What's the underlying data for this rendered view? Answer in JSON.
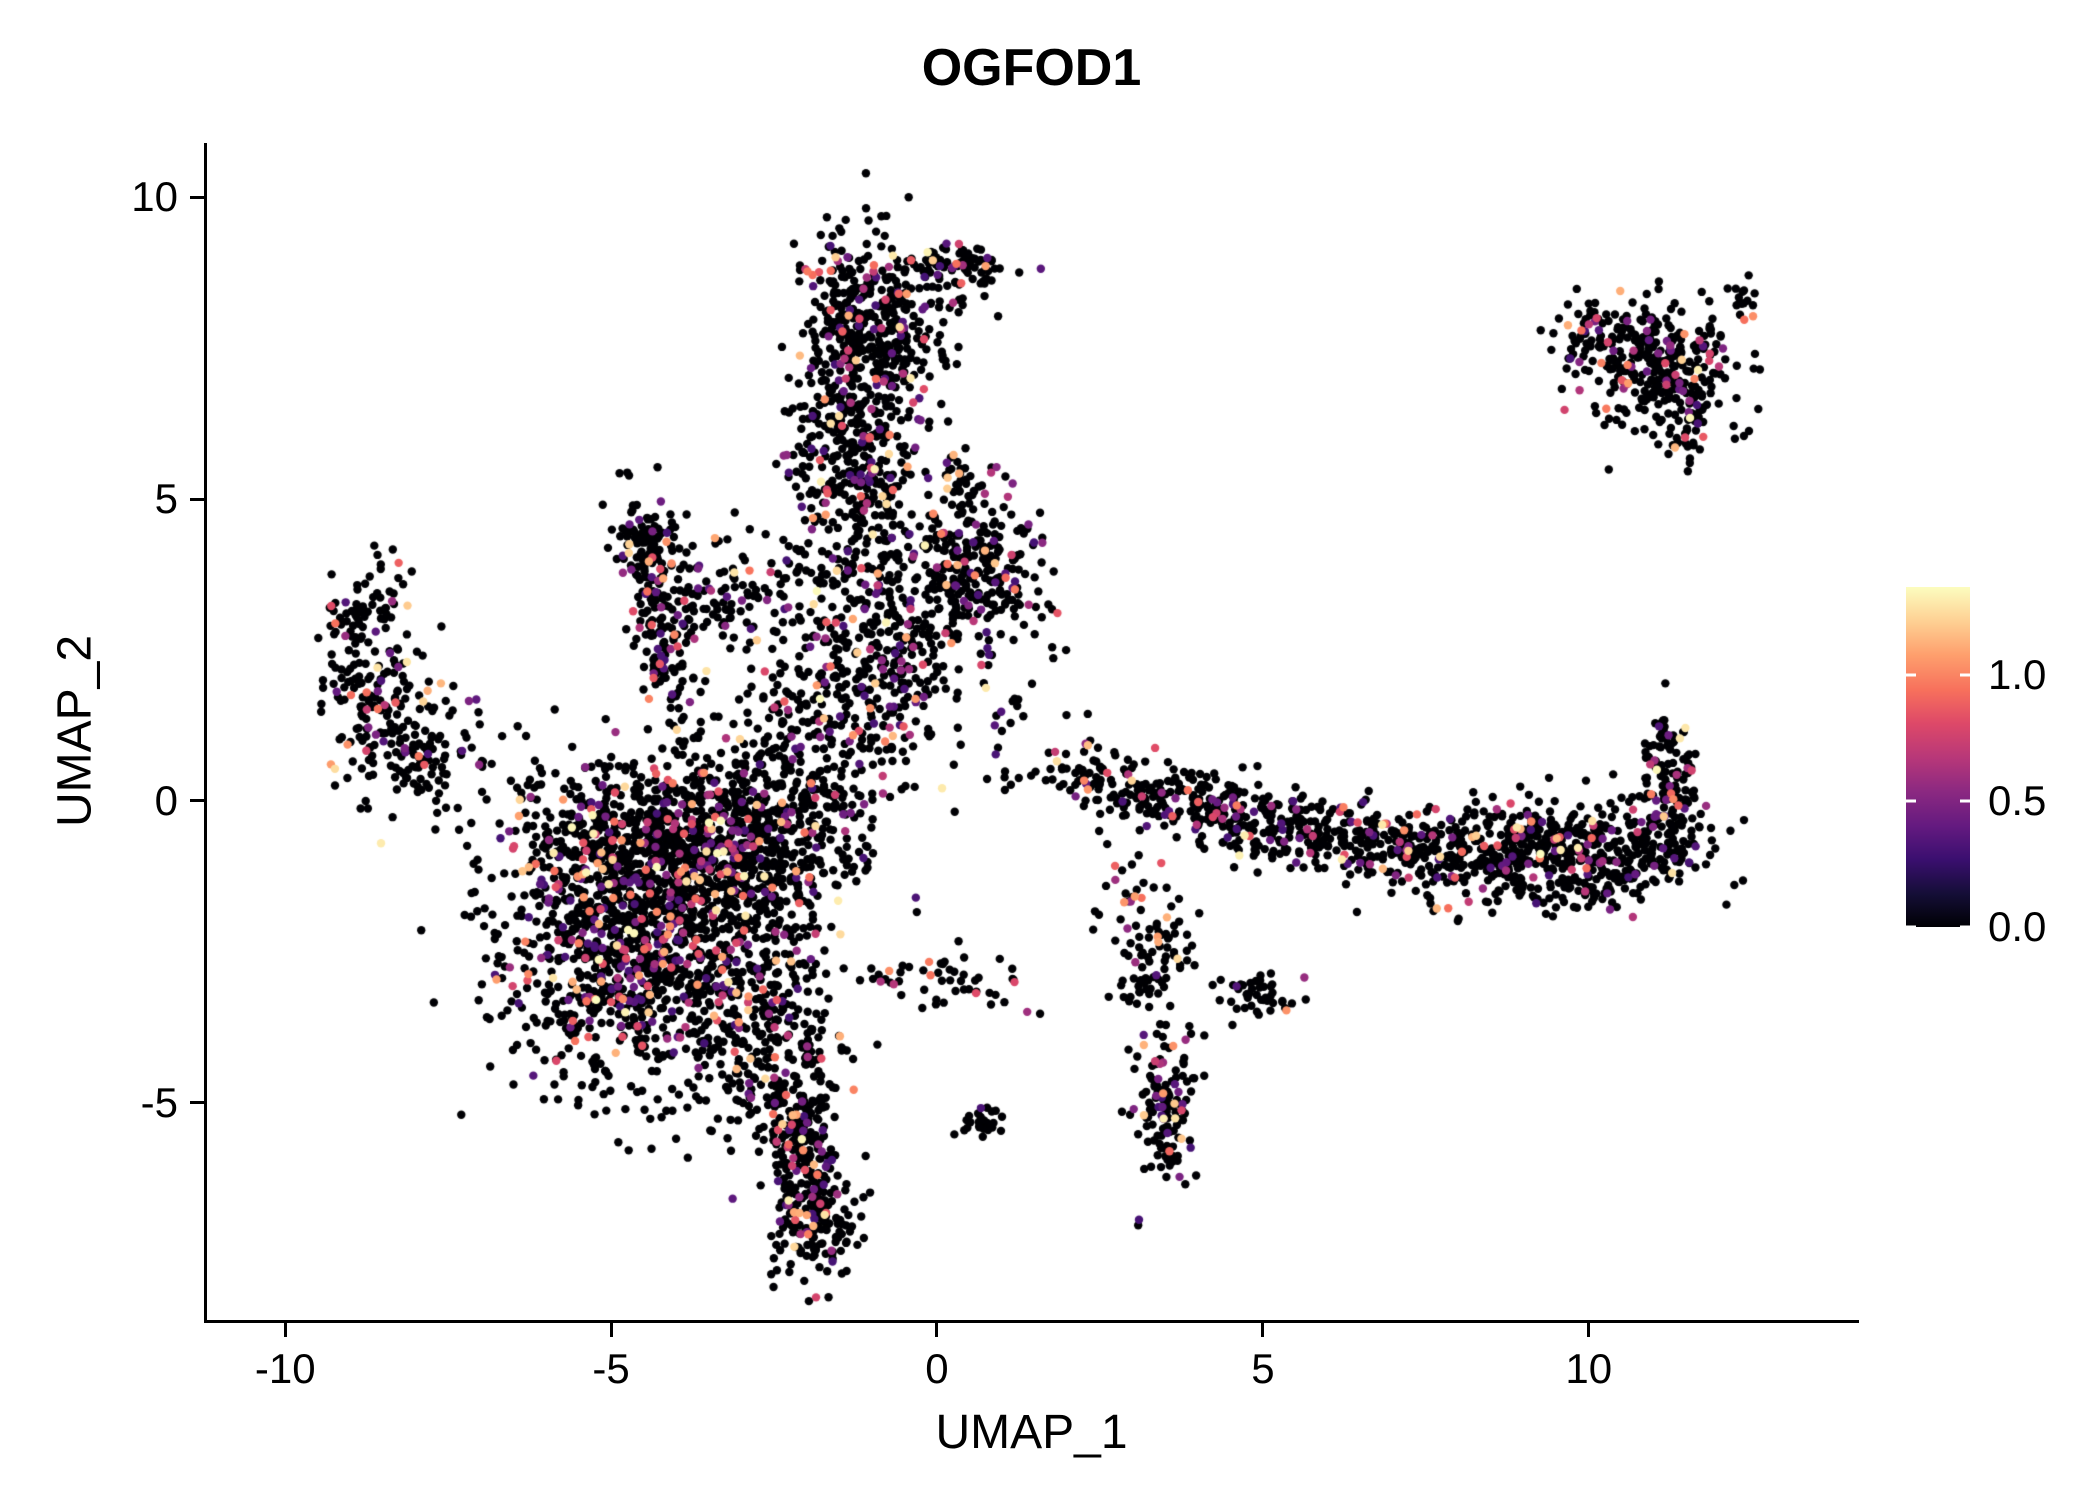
{
  "title": "OGFOD1",
  "chart_data": {
    "type": "scatter",
    "title": "OGFOD1",
    "xlabel": "UMAP_1",
    "ylabel": "UMAP_2",
    "xlim": [
      -11.2,
      14.1
    ],
    "ylim": [
      -8.6,
      10.9
    ],
    "x_ticks": [
      -10,
      -5,
      0,
      5,
      10
    ],
    "x_tick_labels": [
      "-10",
      "-5",
      "0",
      "5",
      "10"
    ],
    "y_ticks": [
      -5,
      0,
      5,
      10
    ],
    "y_tick_labels": [
      "-5",
      "0",
      "5",
      "10"
    ],
    "grid": false,
    "background": "#ffffff",
    "point_radius": 4.2,
    "seed": 42,
    "zero_fraction": 0.84,
    "legend": {
      "position": "right",
      "title": "",
      "ticks": [
        0.0,
        0.5,
        1.0
      ],
      "tick_labels": [
        "0.0",
        "0.5",
        "1.0"
      ],
      "max_value": 1.35,
      "colormap": "magma",
      "stops": [
        {
          "v": 0.0,
          "color": "#000004"
        },
        {
          "v": 0.13,
          "color": "#140e36"
        },
        {
          "v": 0.27,
          "color": "#3b0f70"
        },
        {
          "v": 0.4,
          "color": "#641a80"
        },
        {
          "v": 0.54,
          "color": "#8c2981"
        },
        {
          "v": 0.67,
          "color": "#b73779"
        },
        {
          "v": 0.81,
          "color": "#de4968"
        },
        {
          "v": 0.94,
          "color": "#f7705c"
        },
        {
          "v": 1.08,
          "color": "#fe9f6d"
        },
        {
          "v": 1.21,
          "color": "#fecf92"
        },
        {
          "v": 1.35,
          "color": "#fcfdbf"
        }
      ]
    },
    "clusters": [
      {
        "cx": -4.3,
        "cy": -2.2,
        "sx": 1.15,
        "sy": 1.25,
        "n": 1500
      },
      {
        "cx": -3.3,
        "cy": -0.8,
        "sx": 0.95,
        "sy": 0.75,
        "n": 500
      },
      {
        "cx": -5.3,
        "cy": -0.5,
        "sx": 0.75,
        "sy": 0.5,
        "n": 200
      },
      {
        "cx": -2.6,
        "cy": -4.3,
        "sx": 0.5,
        "sy": 0.7,
        "n": 190
      },
      {
        "cx": -2.1,
        "cy": -5.6,
        "sx": 0.28,
        "sy": 0.6,
        "n": 150
      },
      {
        "cx": -1.85,
        "cy": -6.9,
        "sx": 0.3,
        "sy": 0.55,
        "n": 170
      },
      {
        "cx": -2.3,
        "cy": -0.1,
        "sx": 0.65,
        "sy": 0.9,
        "n": 170
      },
      {
        "cx": -8.6,
        "cy": 1.9,
        "sx": 0.45,
        "sy": 0.85,
        "n": 170
      },
      {
        "cx": -7.9,
        "cy": 0.8,
        "sx": 0.45,
        "sy": 0.5,
        "n": 90
      },
      {
        "cx": -8.9,
        "cy": 3.1,
        "sx": 0.3,
        "sy": 0.25,
        "n": 40
      },
      {
        "cx": -4.25,
        "cy": 2.9,
        "sx": 0.18,
        "sy": 1.05,
        "n": 160,
        "rot": 8
      },
      {
        "cx": -4.4,
        "cy": 4.35,
        "sx": 0.3,
        "sy": 0.28,
        "n": 70
      },
      {
        "cx": -3.4,
        "cy": 3.4,
        "sx": 0.55,
        "sy": 0.5,
        "n": 110
      },
      {
        "cx": -1.0,
        "cy": 7.95,
        "sx": 0.55,
        "sy": 0.7,
        "n": 400
      },
      {
        "cx": 0.3,
        "cy": 8.85,
        "sx": 0.4,
        "sy": 0.25,
        "n": 80
      },
      {
        "cx": -1.3,
        "cy": 5.9,
        "sx": 0.5,
        "sy": 0.85,
        "n": 360
      },
      {
        "cx": -0.9,
        "cy": 3.2,
        "sx": 0.85,
        "sy": 1.0,
        "n": 340
      },
      {
        "cx": -1.4,
        "cy": 1.3,
        "sx": 1.0,
        "sy": 0.85,
        "n": 260
      },
      {
        "cx": 0.6,
        "cy": 3.9,
        "sx": 0.5,
        "sy": 0.6,
        "n": 230
      },
      {
        "cx": 0.35,
        "cy": 5.25,
        "sx": 0.18,
        "sy": 0.22,
        "n": 30
      },
      {
        "cx": 2.3,
        "cy": 0.45,
        "sx": 0.45,
        "sy": 0.28,
        "n": 60
      },
      {
        "cx": 3.3,
        "cy": 0.1,
        "sx": 0.5,
        "sy": 0.3,
        "n": 90
      },
      {
        "cx": 4.3,
        "cy": -0.2,
        "sx": 0.5,
        "sy": 0.32,
        "n": 110
      },
      {
        "cx": 5.3,
        "cy": -0.45,
        "sx": 0.5,
        "sy": 0.3,
        "n": 110
      },
      {
        "cx": 6.3,
        "cy": -0.6,
        "sx": 0.5,
        "sy": 0.3,
        "n": 100
      },
      {
        "cx": 7.3,
        "cy": -0.8,
        "sx": 0.5,
        "sy": 0.32,
        "n": 115
      },
      {
        "cx": 8.7,
        "cy": -0.9,
        "sx": 0.7,
        "sy": 0.42,
        "n": 270
      },
      {
        "cx": 10.3,
        "cy": -0.8,
        "sx": 0.7,
        "sy": 0.45,
        "n": 310
      },
      {
        "cx": 11.3,
        "cy": 0.0,
        "sx": 0.22,
        "sy": 0.5,
        "n": 90
      },
      {
        "cx": 11.15,
        "cy": 0.95,
        "sx": 0.16,
        "sy": 0.3,
        "n": 40
      },
      {
        "cx": 3.35,
        "cy": -2.6,
        "sx": 0.22,
        "sy": 0.5,
        "n": 75,
        "rot": -20
      },
      {
        "cx": 4.9,
        "cy": -3.2,
        "sx": 0.3,
        "sy": 0.2,
        "n": 45
      },
      {
        "cx": 3.5,
        "cy": -5.05,
        "sx": 0.24,
        "sy": 0.6,
        "n": 140
      },
      {
        "cx": 2.95,
        "cy": -1.5,
        "sx": 0.3,
        "sy": 0.4,
        "n": 25
      },
      {
        "cx": 11.0,
        "cy": 7.2,
        "sx": 0.6,
        "sy": 0.55,
        "n": 300
      },
      {
        "cx": 10.3,
        "cy": 7.8,
        "sx": 0.4,
        "sy": 0.22,
        "n": 50
      },
      {
        "cx": 12.35,
        "cy": 8.3,
        "sx": 0.14,
        "sy": 0.14,
        "n": 15
      },
      {
        "cx": 11.55,
        "cy": 6.3,
        "sx": 0.25,
        "sy": 0.35,
        "n": 50
      },
      {
        "cx": 0.65,
        "cy": -5.3,
        "sx": 0.18,
        "sy": 0.13,
        "n": 25
      },
      {
        "cx": 0.2,
        "cy": -3.0,
        "sx": 0.7,
        "sy": 0.3,
        "n": 50
      },
      {
        "cx": -6.8,
        "cy": 0.9,
        "sx": 0.5,
        "sy": 0.4,
        "n": 10
      },
      {
        "cx": 1.0,
        "cy": 1.6,
        "sx": 0.5,
        "sy": 0.5,
        "n": 15
      },
      {
        "cx": 1.6,
        "cy": 2.5,
        "sx": 0.4,
        "sy": 0.5,
        "n": 10
      }
    ]
  }
}
